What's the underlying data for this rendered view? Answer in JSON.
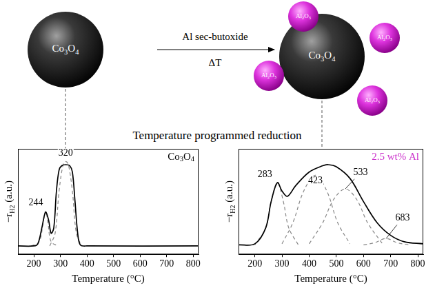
{
  "scheme": {
    "left_particle": "Co3O4",
    "arrow_top": "Al sec-butoxide",
    "arrow_bottom": "ΔT",
    "right_particle": "Co3O4",
    "shell_particles": [
      "Al2O3",
      "Al2O3",
      "Al2O3",
      "Al2O3"
    ],
    "caption": "Temperature programmed reduction"
  },
  "chart_data": [
    {
      "type": "line",
      "label": {
        "text": "Co3O4",
        "color": "#000000"
      },
      "x_label": "Temperature (°C)",
      "y_label": {
        "text": "−r",
        "sub": "H2",
        "suffix": " (a.u.)"
      },
      "xlim": [
        140,
        820
      ],
      "xticks": [
        200,
        300,
        400,
        500,
        600,
        700,
        800
      ],
      "ylim": [
        0,
        1
      ],
      "yticks": [],
      "tick_labels": "x",
      "grid": false,
      "series": [
        {
          "color": "#000000",
          "line_style": "solid",
          "x": [
            140,
            200,
            215,
            230,
            244,
            255,
            265,
            275,
            285,
            295,
            305,
            320,
            335,
            345,
            355,
            365,
            375,
            400,
            820
          ],
          "values": [
            0.08,
            0.08,
            0.1,
            0.25,
            0.4,
            0.33,
            0.2,
            0.25,
            0.6,
            0.8,
            0.84,
            0.85,
            0.84,
            0.78,
            0.5,
            0.2,
            0.09,
            0.08,
            0.08
          ]
        },
        {
          "color": "#888888",
          "line_style": "dashed",
          "x": [
            190,
            220,
            235,
            244,
            253,
            265,
            290
          ],
          "values": [
            0.08,
            0.12,
            0.3,
            0.41,
            0.3,
            0.12,
            0.08
          ]
        },
        {
          "color": "#888888",
          "line_style": "dashed",
          "x": [
            260,
            280,
            295,
            310,
            320,
            330,
            345,
            360,
            380
          ],
          "values": [
            0.08,
            0.2,
            0.6,
            0.85,
            0.88,
            0.85,
            0.6,
            0.2,
            0.08
          ]
        }
      ],
      "annotations": [
        {
          "text": "244",
          "x": 244,
          "y": 0.41
        },
        {
          "text": "320",
          "x": 320,
          "y": 0.88
        }
      ]
    },
    {
      "type": "line",
      "label": {
        "text": "2.5 wt% Al",
        "color": "#cc33cc"
      },
      "x_label": "Temperature (°C)",
      "y_label": {
        "text": "−r",
        "sub": "H2",
        "suffix": " (a.u.)"
      },
      "xlim": [
        140,
        820
      ],
      "xticks": [
        200,
        300,
        400,
        500,
        600,
        700,
        800
      ],
      "ylim": [
        0,
        1
      ],
      "yticks": [],
      "tick_labels": "x",
      "grid": false,
      "series": [
        {
          "color": "#000000",
          "line_style": "solid",
          "x": [
            140,
            200,
            240,
            260,
            283,
            300,
            320,
            350,
            400,
            450,
            470,
            500,
            550,
            600,
            650,
            700,
            750,
            820
          ],
          "values": [
            0.09,
            0.1,
            0.25,
            0.5,
            0.68,
            0.6,
            0.55,
            0.65,
            0.78,
            0.84,
            0.85,
            0.83,
            0.72,
            0.5,
            0.3,
            0.18,
            0.12,
            0.1
          ]
        },
        {
          "color": "#888888",
          "line_style": "dashed",
          "x": [
            200,
            240,
            260,
            283,
            305,
            325,
            360
          ],
          "values": [
            0.09,
            0.25,
            0.5,
            0.68,
            0.5,
            0.25,
            0.09
          ]
        },
        {
          "color": "#888888",
          "line_style": "dashed",
          "x": [
            300,
            340,
            380,
            423,
            465,
            505,
            550
          ],
          "values": [
            0.1,
            0.3,
            0.6,
            0.75,
            0.6,
            0.3,
            0.1
          ]
        },
        {
          "color": "#888888",
          "line_style": "dashed",
          "x": [
            400,
            450,
            490,
            533,
            575,
            615,
            670
          ],
          "values": [
            0.1,
            0.3,
            0.52,
            0.62,
            0.52,
            0.3,
            0.1
          ]
        },
        {
          "color": "#888888",
          "line_style": "dashed",
          "x": [
            600,
            640,
            683,
            725,
            770
          ],
          "values": [
            0.09,
            0.11,
            0.15,
            0.11,
            0.09
          ]
        }
      ],
      "annotations": [
        {
          "text": "283",
          "x": 283,
          "y": 0.68
        },
        {
          "text": "423",
          "x": 423,
          "y": 0.75
        },
        {
          "text": "533",
          "x": 533,
          "y": 0.62
        },
        {
          "text": "683",
          "x": 683,
          "y": 0.15
        }
      ]
    }
  ]
}
